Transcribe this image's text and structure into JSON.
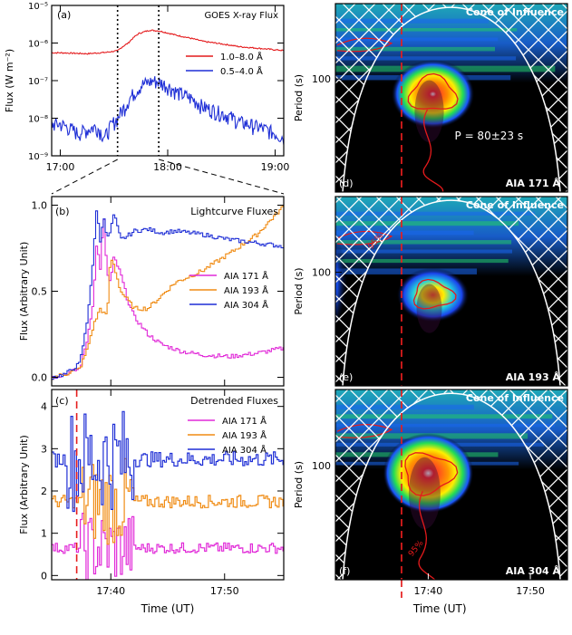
{
  "colors": {
    "red": "#e41a1c",
    "blue": "#1f2fd6",
    "magenta": "#e12ad8",
    "orange": "#f08c14",
    "dashed_red": "#e61e1e",
    "white": "#ffffff",
    "black": "#000000"
  },
  "xlabel": "Time (UT)",
  "chart_data": [
    {
      "id": "a",
      "type": "line",
      "panel_tag": "(a)",
      "title": "GOES X-ray Flux",
      "ylabel": "Flux (W m⁻²)",
      "yscale": "log",
      "ylim": [
        1e-09,
        1e-05
      ],
      "ytick_labels": [
        "10⁻⁹",
        "10⁻⁸",
        "10⁻⁷",
        "10⁻⁶",
        "10⁻⁵"
      ],
      "xlim_hours": [
        16.92,
        19.08
      ],
      "xtick_labels": [
        "17:00",
        "18:00",
        "19:00"
      ],
      "vlines": [
        "17:32",
        "17:55"
      ],
      "series": [
        {
          "name": "1.0–8.0 Å",
          "color": "#e41a1c",
          "t": [
            "17:00",
            "17:15",
            "17:25",
            "17:32",
            "17:38",
            "17:44",
            "17:50",
            "17:55",
            "18:05",
            "18:20",
            "18:40",
            "19:00",
            "19:05"
          ],
          "y": [
            5.5e-07,
            5.2e-07,
            5.6e-07,
            6.2e-07,
            1e-06,
            1.8e-06,
            2.2e-06,
            2.1e-06,
            1.6e-06,
            1.1e-06,
            8e-07,
            6.6e-07,
            6.3e-07
          ]
        },
        {
          "name": "0.5–4.0 Å",
          "color": "#1f2fd6",
          "t": [
            "17:00",
            "17:10",
            "17:20",
            "17:25",
            "17:30",
            "17:32",
            "17:36",
            "17:40",
            "17:46",
            "17:52",
            "17:56",
            "18:05",
            "18:20",
            "18:40",
            "19:00",
            "19:05"
          ],
          "y": [
            7e-09,
            4e-09,
            6e-09,
            3e-09,
            8e-09,
            1e-08,
            2e-08,
            4e-08,
            8e-08,
            1e-07,
            9e-08,
            5e-08,
            2e-08,
            8e-09,
            4e-09,
            3e-09
          ]
        }
      ]
    },
    {
      "id": "b",
      "type": "line",
      "panel_tag": "(b)",
      "title": "Lightcurve Fluxes",
      "ylabel": "Flux (Arbitrary Unit)",
      "ylim": [
        -0.05,
        1.05
      ],
      "ytick_labels": [
        "0.0",
        "0.5",
        "1.0"
      ],
      "xlim_min": [
        17.58,
        17.92
      ],
      "series": [
        {
          "name": "AIA 171 Å",
          "color": "#e12ad8",
          "t": [
            17.58,
            17.6,
            17.62,
            17.63,
            17.64,
            17.645,
            17.65,
            17.655,
            17.66,
            17.665,
            17.67,
            17.68,
            17.69,
            17.7,
            17.71,
            17.72,
            17.74,
            17.77,
            17.8,
            17.84,
            17.88,
            17.92
          ],
          "y": [
            0.0,
            0.02,
            0.05,
            0.2,
            0.45,
            0.8,
            0.62,
            0.95,
            0.6,
            0.55,
            0.7,
            0.6,
            0.45,
            0.35,
            0.3,
            0.25,
            0.19,
            0.15,
            0.13,
            0.12,
            0.14,
            0.17
          ]
        },
        {
          "name": "AIA 193 Å",
          "color": "#f08c14",
          "t": [
            17.58,
            17.6,
            17.62,
            17.63,
            17.64,
            17.65,
            17.66,
            17.665,
            17.67,
            17.68,
            17.69,
            17.7,
            17.72,
            17.76,
            17.8,
            17.84,
            17.88,
            17.92
          ],
          "y": [
            0.0,
            0.02,
            0.05,
            0.15,
            0.3,
            0.4,
            0.35,
            0.7,
            0.65,
            0.5,
            0.45,
            0.4,
            0.4,
            0.55,
            0.62,
            0.72,
            0.83,
            1.0
          ]
        },
        {
          "name": "AIA 304 Å",
          "color": "#1f2fd6",
          "t": [
            17.58,
            17.6,
            17.62,
            17.63,
            17.64,
            17.645,
            17.65,
            17.655,
            17.66,
            17.665,
            17.67,
            17.68,
            17.69,
            17.7,
            17.72,
            17.74,
            17.76,
            17.8,
            17.84,
            17.88,
            17.92
          ],
          "y": [
            0.0,
            0.02,
            0.08,
            0.3,
            0.7,
            1.0,
            0.78,
            0.95,
            0.8,
            0.85,
            0.95,
            0.8,
            0.82,
            0.85,
            0.86,
            0.84,
            0.85,
            0.83,
            0.8,
            0.78,
            0.76
          ]
        }
      ]
    },
    {
      "id": "c",
      "type": "line",
      "panel_tag": "(c)",
      "title": "Detrended Fluxes",
      "ylabel": "Flux (Arbitrary Unit)",
      "ylim": [
        -0.1,
        4.4
      ],
      "ytick_labels": [
        "0",
        "1",
        "2",
        "3",
        "4"
      ],
      "xlim_min": [
        17.58,
        17.92
      ],
      "xtick_labels": [
        "17:40",
        "17:50"
      ],
      "vline": "17:37",
      "series": [
        {
          "name": "AIA 171 Å",
          "color": "#e12ad8",
          "baseline": 0.65,
          "amplitude": 0.45,
          "burst": [
            17.62,
            17.7
          ]
        },
        {
          "name": "AIA 193 Å",
          "color": "#f08c14",
          "baseline": 1.75,
          "amplitude": 0.55,
          "burst": [
            17.62,
            17.7
          ]
        },
        {
          "name": "AIA 304 Å",
          "color": "#1f2fd6",
          "baseline": 2.75,
          "amplitude": 0.65,
          "burst": [
            17.6,
            17.7
          ]
        }
      ]
    },
    {
      "id": "d",
      "type": "heatmap",
      "panel_tag": "(d)",
      "channel": "AIA 171 Å",
      "coi_label": "Cone of Influence",
      "ylabel": "Period (s)",
      "ytick_labels": [
        "100"
      ],
      "annotation": "P = 80±23 s",
      "vline": "17:37",
      "peak": {
        "t": 17.675,
        "period_s": 80
      }
    },
    {
      "id": "e",
      "type": "heatmap",
      "panel_tag": "(e)",
      "channel": "AIA 193 Å",
      "coi_label": "Cone of Influence",
      "ylabel": "Period (s)",
      "ytick_labels": [
        "100"
      ],
      "contour_label": "95%",
      "vline": "17:37",
      "peak": {
        "t": 17.675,
        "period_s": 80
      }
    },
    {
      "id": "f",
      "type": "heatmap",
      "panel_tag": "(f)",
      "channel": "AIA 304 Å",
      "coi_label": "Cone of Influence",
      "ylabel": "Period (s)",
      "ytick_labels": [
        "100"
      ],
      "contour_label": "95%",
      "vline": "17:37",
      "xtick_labels": [
        "17:40",
        "17:50"
      ],
      "peak": {
        "t": 17.675,
        "period_s": 80
      }
    }
  ]
}
